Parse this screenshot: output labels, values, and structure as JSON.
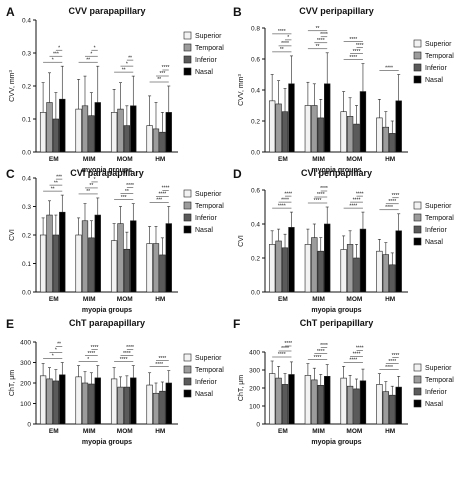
{
  "figure": {
    "group_labels": [
      "EM",
      "MIM",
      "MOM",
      "HM"
    ],
    "legend": [
      "Superior",
      "Temporal",
      "Inferior",
      "Nasal"
    ],
    "colors": {
      "Superior": "#f2f2f2",
      "Temporal": "#9c9c9c",
      "Inferior": "#5a5a5a",
      "Nasal": "#000000",
      "axis": "#111111"
    }
  },
  "chart_data": [
    {
      "panel": "A",
      "type": "bar",
      "title": "CVV parapapillary",
      "xlabel": "myopia groups",
      "ylabel": "CVV, mm³",
      "ylim": [
        0,
        0.4
      ],
      "yticks": [
        "0.0",
        "0.1",
        "0.2",
        "0.3",
        "0.4"
      ],
      "categories": [
        "EM",
        "MIM",
        "MOM",
        "HM"
      ],
      "series": [
        {
          "name": "Superior",
          "values": [
            0.12,
            0.13,
            0.12,
            0.08
          ]
        },
        {
          "name": "Temporal",
          "values": [
            0.15,
            0.14,
            0.13,
            0.07
          ]
        },
        {
          "name": "Inferior",
          "values": [
            0.1,
            0.11,
            0.08,
            0.06
          ]
        },
        {
          "name": "Nasal",
          "values": [
            0.16,
            0.15,
            0.14,
            0.12
          ]
        }
      ],
      "errors": [
        [
          0.09,
          0.09,
          0.07,
          0.09
        ],
        [
          0.09,
          0.09,
          0.08,
          0.08
        ],
        [
          0.08,
          0.07,
          0.06,
          0.06
        ],
        [
          0.1,
          0.11,
          0.09,
          0.08
        ]
      ],
      "annotations": [
        "*",
        "***",
        "*",
        "**",
        "*",
        "*",
        "**",
        "*",
        "**",
        "**",
        "***",
        "****"
      ]
    },
    {
      "panel": "B",
      "type": "bar",
      "title": "CVV peripapillary",
      "xlabel": "myopia groups",
      "ylabel": "CVV, mm³",
      "ylim": [
        0,
        0.8
      ],
      "yticks": [
        "0.0",
        "0.2",
        "0.4",
        "0.6",
        "0.8"
      ],
      "categories": [
        "EM",
        "MIM",
        "MOM",
        "HM"
      ],
      "series": [
        {
          "name": "Superior",
          "values": [
            0.33,
            0.3,
            0.26,
            0.22
          ]
        },
        {
          "name": "Temporal",
          "values": [
            0.31,
            0.3,
            0.23,
            0.16
          ]
        },
        {
          "name": "Inferior",
          "values": [
            0.26,
            0.22,
            0.18,
            0.12
          ]
        },
        {
          "name": "Nasal",
          "values": [
            0.44,
            0.44,
            0.39,
            0.33
          ]
        }
      ],
      "errors": [
        [
          0.17,
          0.15,
          0.13,
          0.12
        ],
        [
          0.15,
          0.14,
          0.12,
          0.1
        ],
        [
          0.15,
          0.12,
          0.12,
          0.08
        ],
        [
          0.18,
          0.2,
          0.18,
          0.17
        ]
      ],
      "annotations": [
        "**",
        "****",
        "*",
        "****",
        "**",
        "****",
        "****",
        "**",
        "****",
        "****",
        "****",
        "****",
        "****"
      ]
    },
    {
      "panel": "C",
      "type": "bar",
      "title": "CVI parapapillary",
      "xlabel": "myopia groups",
      "ylabel": "CVI",
      "ylim": [
        0,
        0.4
      ],
      "yticks": [
        "0.0",
        "0.1",
        "0.2",
        "0.3",
        "0.4"
      ],
      "categories": [
        "EM",
        "MIM",
        "MOM",
        "HM"
      ],
      "series": [
        {
          "name": "Superior",
          "values": [
            0.2,
            0.2,
            0.18,
            0.17
          ]
        },
        {
          "name": "Temporal",
          "values": [
            0.27,
            0.25,
            0.24,
            0.17
          ]
        },
        {
          "name": "Inferior",
          "values": [
            0.2,
            0.19,
            0.15,
            0.13
          ]
        },
        {
          "name": "Nasal",
          "values": [
            0.28,
            0.27,
            0.25,
            0.24
          ]
        }
      ],
      "errors": [
        [
          0.06,
          0.06,
          0.06,
          0.06
        ],
        [
          0.05,
          0.06,
          0.06,
          0.06
        ],
        [
          0.07,
          0.06,
          0.06,
          0.06
        ],
        [
          0.06,
          0.06,
          0.06,
          0.06
        ]
      ],
      "annotations": [
        "**",
        "**",
        "***",
        "**",
        "**",
        "*",
        "***",
        "**",
        "****",
        "***",
        "****",
        "****"
      ]
    },
    {
      "panel": "D",
      "type": "bar",
      "title": "CVI peripapillary",
      "xlabel": "myopia groups",
      "ylabel": "CVI",
      "ylim": [
        0,
        0.6
      ],
      "yticks": [
        "0.0",
        "0.2",
        "0.4",
        "0.6"
      ],
      "categories": [
        "EM",
        "MIM",
        "MOM",
        "HM"
      ],
      "series": [
        {
          "name": "Superior",
          "values": [
            0.28,
            0.28,
            0.25,
            0.24
          ]
        },
        {
          "name": "Temporal",
          "values": [
            0.3,
            0.32,
            0.28,
            0.22
          ]
        },
        {
          "name": "Inferior",
          "values": [
            0.26,
            0.24,
            0.2,
            0.16
          ]
        },
        {
          "name": "Nasal",
          "values": [
            0.38,
            0.4,
            0.37,
            0.36
          ]
        }
      ],
      "errors": [
        [
          0.08,
          0.09,
          0.08,
          0.07
        ],
        [
          0.07,
          0.08,
          0.08,
          0.07
        ],
        [
          0.08,
          0.08,
          0.08,
          0.07
        ],
        [
          0.09,
          0.1,
          0.1,
          0.1
        ]
      ],
      "annotations": [
        "****",
        "****",
        "****",
        "****",
        "****",
        "****",
        "****",
        "****",
        "****",
        "****",
        "****",
        "****"
      ]
    },
    {
      "panel": "E",
      "type": "bar",
      "title": "ChT parapapillary",
      "xlabel": "myopia groups",
      "ylabel": "ChT, μm",
      "ylim": [
        0,
        400
      ],
      "yticks": [
        "0",
        "100",
        "200",
        "300",
        "400"
      ],
      "categories": [
        "EM",
        "MIM",
        "MOM",
        "HM"
      ],
      "series": [
        {
          "name": "Superior",
          "values": [
            235,
            230,
            220,
            190
          ]
        },
        {
          "name": "Temporal",
          "values": [
            220,
            200,
            180,
            150
          ]
        },
        {
          "name": "Inferior",
          "values": [
            210,
            195,
            180,
            160
          ]
        },
        {
          "name": "Nasal",
          "values": [
            240,
            225,
            225,
            200
          ]
        }
      ],
      "errors": [
        [
          60,
          55,
          55,
          60
        ],
        [
          55,
          55,
          50,
          50
        ],
        [
          55,
          55,
          55,
          45
        ],
        [
          60,
          60,
          60,
          60
        ]
      ],
      "annotations": [
        "*",
        "*",
        "**",
        "*",
        "****",
        "****",
        "****",
        "****",
        "****",
        "****",
        "****"
      ]
    },
    {
      "panel": "F",
      "type": "bar",
      "title": "ChT peripapillary",
      "xlabel": "myopia groups",
      "ylabel": "ChT, μm",
      "ylim": [
        0,
        400
      ],
      "yticks": [
        "0",
        "100",
        "200",
        "300",
        "400"
      ],
      "categories": [
        "EM",
        "MIM",
        "MOM",
        "HM"
      ],
      "series": [
        {
          "name": "Superior",
          "values": [
            280,
            270,
            255,
            220
          ]
        },
        {
          "name": "Temporal",
          "values": [
            255,
            245,
            210,
            180
          ]
        },
        {
          "name": "Inferior",
          "values": [
            220,
            215,
            195,
            160
          ]
        },
        {
          "name": "Nasal",
          "values": [
            275,
            265,
            240,
            205
          ]
        }
      ],
      "errors": [
        [
          70,
          65,
          65,
          60
        ],
        [
          65,
          65,
          60,
          55
        ],
        [
          60,
          60,
          55,
          50
        ],
        [
          70,
          65,
          65,
          60
        ]
      ],
      "annotations": [
        "****",
        "****",
        "****",
        "****",
        "****",
        "****",
        "****",
        "****",
        "****",
        "****",
        "****",
        "****"
      ]
    }
  ]
}
